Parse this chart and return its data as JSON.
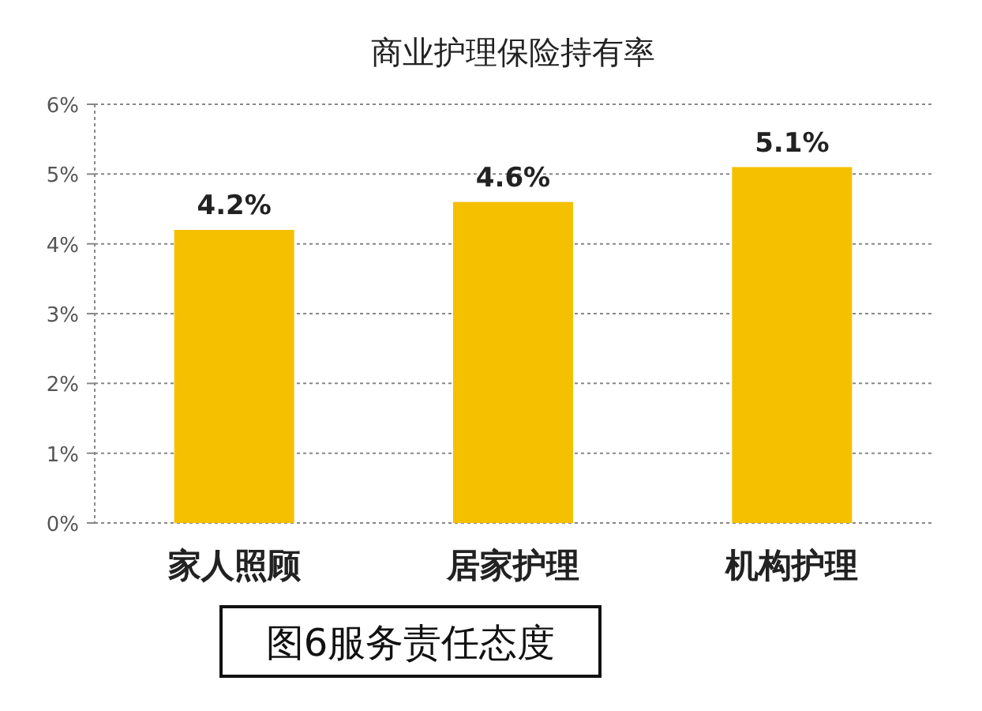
{
  "chart_data": {
    "type": "bar",
    "title": "商业护理保险持有率",
    "categories": [
      "家人照顾",
      "居家护理",
      "机构护理"
    ],
    "values": [
      4.2,
      4.6,
      5.1
    ],
    "value_labels": [
      "4.2%",
      "4.6%",
      "5.1%"
    ],
    "color": "#f5c000",
    "ylim": [
      0,
      6
    ],
    "yticks": [
      {
        "value": 0,
        "label": "0%"
      },
      {
        "value": 1,
        "label": "1%"
      },
      {
        "value": 2,
        "label": "2%"
      },
      {
        "value": 3,
        "label": "3%"
      },
      {
        "value": 4,
        "label": "4%"
      },
      {
        "value": 5,
        "label": "5%"
      },
      {
        "value": 6,
        "label": "6%"
      }
    ],
    "grid": "y",
    "annotations": [
      "图6服务责任态度"
    ]
  }
}
